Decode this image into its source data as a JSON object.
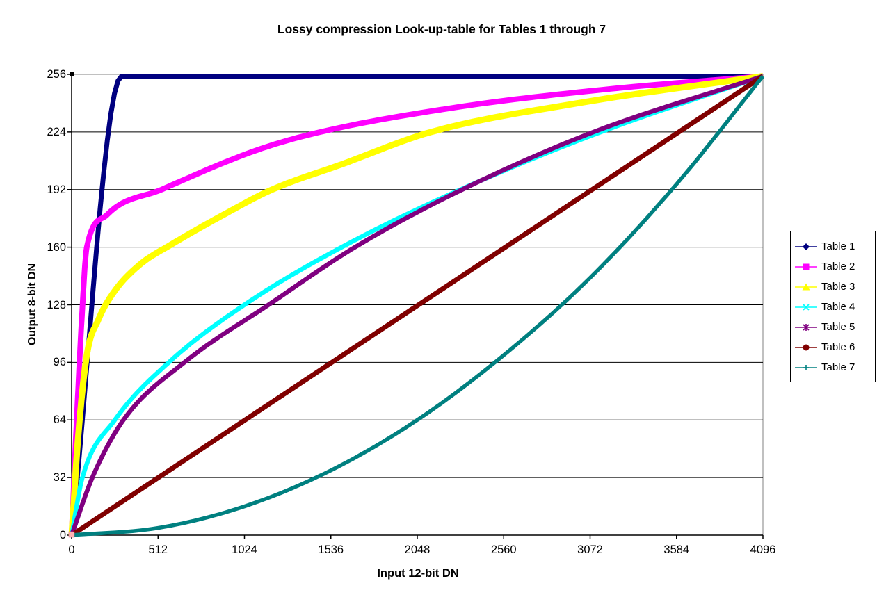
{
  "title": "Lossy compression Look-up-table for Tables 1 through 7",
  "chart_data": {
    "type": "line",
    "title": "Lossy compression Look-up-table for Tables 1 through 7",
    "xlabel": "Input 12-bit DN",
    "ylabel": "Output 8-bit DN",
    "xlim": [
      0,
      4096
    ],
    "ylim": [
      0,
      256
    ],
    "xticks": [
      0,
      512,
      1024,
      1536,
      2048,
      2560,
      3072,
      3584,
      4096
    ],
    "yticks": [
      0,
      32,
      64,
      96,
      128,
      160,
      192,
      224,
      256
    ],
    "grid": "horizontal-black",
    "plot_border_color": "#808080",
    "gridline_color": "#000000",
    "axis_color": "#000000",
    "background": "#ffffff",
    "legend_position": "right",
    "series": [
      {
        "name": "Table 1",
        "color": "#000080",
        "marker": "diamond",
        "band_width": 7,
        "points": [
          [
            0,
            0
          ],
          [
            296,
            255
          ],
          [
            4096,
            255
          ]
        ]
      },
      {
        "name": "Table 2",
        "color": "#FF00FF",
        "marker": "square",
        "band_width": 8,
        "points": [
          [
            0,
            0
          ],
          [
            30,
            64
          ],
          [
            60,
            120
          ],
          [
            90,
            160
          ],
          [
            210,
            178
          ],
          [
            533,
            192
          ],
          [
            1100,
            214
          ],
          [
            1475,
            224
          ],
          [
            2300,
            238
          ],
          [
            3200,
            248
          ],
          [
            4096,
            255
          ]
        ]
      },
      {
        "name": "Table 3",
        "color": "#FFFF00",
        "marker": "triangle",
        "band_width": 9,
        "points": [
          [
            0,
            0
          ],
          [
            40,
            56
          ],
          [
            90,
            100
          ],
          [
            160,
            120
          ],
          [
            250,
            135
          ],
          [
            400,
            150
          ],
          [
            600,
            162
          ],
          [
            900,
            178
          ],
          [
            1188,
            192
          ],
          [
            1600,
            206
          ],
          [
            2130,
            224
          ],
          [
            3000,
            240
          ],
          [
            4096,
            255
          ]
        ]
      },
      {
        "name": "Table 4",
        "color": "#00FFFF",
        "marker": "x",
        "band_width": 6.5,
        "points": [
          [
            0,
            0
          ],
          [
            64,
            32
          ],
          [
            256,
            64
          ],
          [
            576,
            96
          ],
          [
            1024,
            128
          ],
          [
            1600,
            160
          ],
          [
            2304,
            192
          ],
          [
            3136,
            224
          ],
          [
            4096,
            255
          ]
        ]
      },
      {
        "name": "Table 5",
        "color": "#800080",
        "marker": "asterisk",
        "band_width": 6.5,
        "points": [
          [
            0,
            0
          ],
          [
            123,
            32
          ],
          [
            307,
            64
          ],
          [
            668,
            96
          ],
          [
            1167,
            128
          ],
          [
            1679,
            160
          ],
          [
            2314,
            192
          ],
          [
            3093,
            224
          ],
          [
            4096,
            255
          ]
        ]
      },
      {
        "name": "Table 6",
        "color": "#800000",
        "marker": "circle",
        "band_width": 7,
        "points": [
          [
            0,
            0
          ],
          [
            4096,
            255
          ]
        ]
      },
      {
        "name": "Table 7",
        "color": "#008080",
        "marker": "plus",
        "band_width": 5.5,
        "points": [
          [
            0,
            0
          ],
          [
            512,
            4
          ],
          [
            1024,
            16
          ],
          [
            1536,
            36
          ],
          [
            2048,
            64
          ],
          [
            2560,
            100
          ],
          [
            3072,
            143
          ],
          [
            3584,
            195
          ],
          [
            4096,
            255
          ]
        ]
      }
    ]
  },
  "decorations": {
    "corner_handle_color": "#000000",
    "origin_handle_color": "#ffb3b3"
  }
}
